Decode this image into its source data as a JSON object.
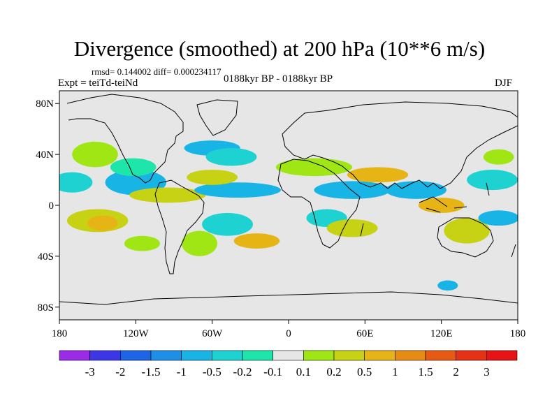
{
  "title": "Divergence (smoothed) at 200 hPa (10**6 m/s)",
  "stats": "rmsd= 0.144002  diff= 0.000234117",
  "experiment": "Expt = teiTd-teiNd",
  "period": "0188kyr BP - 0188kyr BP",
  "season": "DJF",
  "chart_data": {
    "type": "heatmap",
    "projection": "cylindrical-equidistant",
    "x_ticks": [
      "180",
      "120W",
      "60W",
      "0",
      "60E",
      "120E",
      "180"
    ],
    "y_ticks": [
      "80N",
      "40N",
      "0",
      "40S",
      "80S"
    ],
    "x_range": [
      -180,
      180
    ],
    "y_range": [
      -90,
      90
    ],
    "colorbar": {
      "labels": [
        "-3",
        "-2",
        "-1.5",
        "-1",
        "-0.5",
        "-0.2",
        "-0.1",
        "0.1",
        "0.2",
        "0.5",
        "1",
        "1.5",
        "2",
        "3"
      ],
      "colors": [
        "#9b2be6",
        "#3c37e6",
        "#1e64e6",
        "#1e8fe6",
        "#19b4e6",
        "#1ed2d2",
        "#1ee6aa",
        "#e6e6e6",
        "#a0e614",
        "#c8d214",
        "#e6b414",
        "#e68c14",
        "#e65a14",
        "#e63214",
        "#e61414"
      ]
    },
    "regions": [
      {
        "lon": -170,
        "lat": 18,
        "rx": 16,
        "ry": 8,
        "color": "#1ed2d2"
      },
      {
        "lon": -150,
        "lat": -12,
        "rx": 24,
        "ry": 9,
        "color": "#c8d214"
      },
      {
        "lon": -146,
        "lat": -14,
        "rx": 12,
        "ry": 6,
        "color": "#e6b414"
      },
      {
        "lon": -152,
        "lat": 40,
        "rx": 18,
        "ry": 10,
        "color": "#a0e614"
      },
      {
        "lon": -120,
        "lat": 18,
        "rx": 24,
        "ry": 10,
        "color": "#19b4e6"
      },
      {
        "lon": -122,
        "lat": 30,
        "rx": 18,
        "ry": 7,
        "color": "#1ee6aa"
      },
      {
        "lon": -95,
        "lat": 8,
        "rx": 30,
        "ry": 6,
        "color": "#c8d214"
      },
      {
        "lon": -115,
        "lat": -30,
        "rx": 14,
        "ry": 6,
        "color": "#a0e614"
      },
      {
        "lon": -60,
        "lat": 45,
        "rx": 22,
        "ry": 6,
        "color": "#19b4e6"
      },
      {
        "lon": -45,
        "lat": 38,
        "rx": 20,
        "ry": 7,
        "color": "#1ed2d2"
      },
      {
        "lon": -40,
        "lat": 12,
        "rx": 34,
        "ry": 6,
        "color": "#19b4e6"
      },
      {
        "lon": -60,
        "lat": 22,
        "rx": 20,
        "ry": 6,
        "color": "#c8d214"
      },
      {
        "lon": -48,
        "lat": -15,
        "rx": 20,
        "ry": 9,
        "color": "#1ed2d2"
      },
      {
        "lon": -25,
        "lat": -28,
        "rx": 18,
        "ry": 6,
        "color": "#e6b414"
      },
      {
        "lon": -70,
        "lat": -30,
        "rx": 14,
        "ry": 10,
        "color": "#a0e614"
      },
      {
        "lon": 20,
        "lat": 30,
        "rx": 30,
        "ry": 7,
        "color": "#a0e614"
      },
      {
        "lon": 50,
        "lat": 12,
        "rx": 30,
        "ry": 7,
        "color": "#19b4e6"
      },
      {
        "lon": 70,
        "lat": 24,
        "rx": 24,
        "ry": 6,
        "color": "#e6b414"
      },
      {
        "lon": 30,
        "lat": -10,
        "rx": 16,
        "ry": 7,
        "color": "#1ed2d2"
      },
      {
        "lon": 50,
        "lat": -18,
        "rx": 20,
        "ry": 7,
        "color": "#c8d214"
      },
      {
        "lon": 100,
        "lat": 12,
        "rx": 24,
        "ry": 7,
        "color": "#19b4e6"
      },
      {
        "lon": 120,
        "lat": 0,
        "rx": 18,
        "ry": 6,
        "color": "#e6b414"
      },
      {
        "lon": 140,
        "lat": -20,
        "rx": 18,
        "ry": 10,
        "color": "#c8d214"
      },
      {
        "lon": 160,
        "lat": 20,
        "rx": 20,
        "ry": 8,
        "color": "#1ed2d2"
      },
      {
        "lon": 165,
        "lat": 38,
        "rx": 12,
        "ry": 6,
        "color": "#a0e614"
      },
      {
        "lon": 165,
        "lat": -10,
        "rx": 16,
        "ry": 6,
        "color": "#19b4e6"
      },
      {
        "lon": 125,
        "lat": -63,
        "rx": 8,
        "ry": 4,
        "color": "#19b4e6"
      }
    ]
  }
}
